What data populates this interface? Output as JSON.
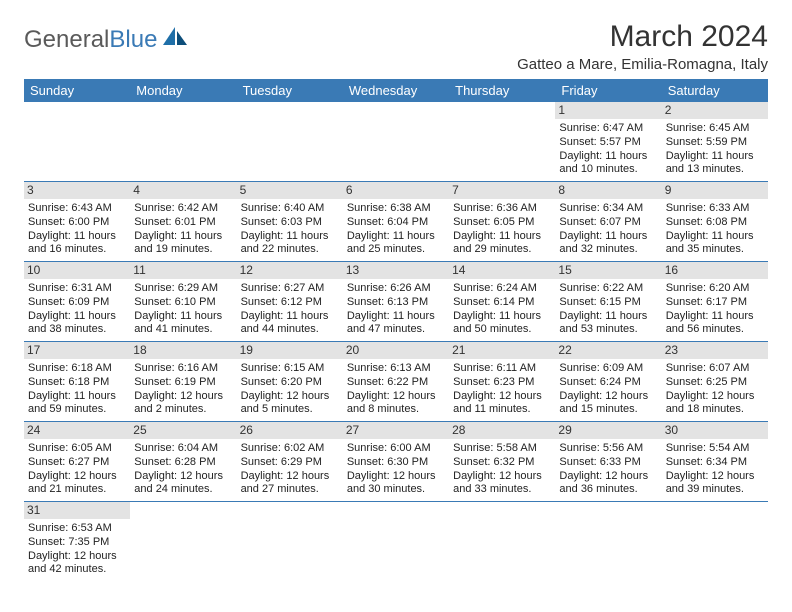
{
  "logo": {
    "general": "General",
    "blue": "Blue"
  },
  "title": "March 2024",
  "location": "Gatteo a Mare, Emilia-Romagna, Italy",
  "colors": {
    "headerBar": "#3a7ab5",
    "shadedDay": "#e3e3e3",
    "text": "#222222",
    "logoGrey": "#5a5a5a",
    "background": "#ffffff"
  },
  "dayNames": [
    "Sunday",
    "Monday",
    "Tuesday",
    "Wednesday",
    "Thursday",
    "Friday",
    "Saturday"
  ],
  "weeks": [
    [
      null,
      null,
      null,
      null,
      null,
      {
        "n": 1,
        "sr": "6:47 AM",
        "ss": "5:57 PM",
        "dl": "11 hours and 10 minutes."
      },
      {
        "n": 2,
        "sr": "6:45 AM",
        "ss": "5:59 PM",
        "dl": "11 hours and 13 minutes."
      }
    ],
    [
      {
        "n": 3,
        "sr": "6:43 AM",
        "ss": "6:00 PM",
        "dl": "11 hours and 16 minutes."
      },
      {
        "n": 4,
        "sr": "6:42 AM",
        "ss": "6:01 PM",
        "dl": "11 hours and 19 minutes."
      },
      {
        "n": 5,
        "sr": "6:40 AM",
        "ss": "6:03 PM",
        "dl": "11 hours and 22 minutes."
      },
      {
        "n": 6,
        "sr": "6:38 AM",
        "ss": "6:04 PM",
        "dl": "11 hours and 25 minutes."
      },
      {
        "n": 7,
        "sr": "6:36 AM",
        "ss": "6:05 PM",
        "dl": "11 hours and 29 minutes."
      },
      {
        "n": 8,
        "sr": "6:34 AM",
        "ss": "6:07 PM",
        "dl": "11 hours and 32 minutes."
      },
      {
        "n": 9,
        "sr": "6:33 AM",
        "ss": "6:08 PM",
        "dl": "11 hours and 35 minutes."
      }
    ],
    [
      {
        "n": 10,
        "sr": "6:31 AM",
        "ss": "6:09 PM",
        "dl": "11 hours and 38 minutes."
      },
      {
        "n": 11,
        "sr": "6:29 AM",
        "ss": "6:10 PM",
        "dl": "11 hours and 41 minutes."
      },
      {
        "n": 12,
        "sr": "6:27 AM",
        "ss": "6:12 PM",
        "dl": "11 hours and 44 minutes."
      },
      {
        "n": 13,
        "sr": "6:26 AM",
        "ss": "6:13 PM",
        "dl": "11 hours and 47 minutes."
      },
      {
        "n": 14,
        "sr": "6:24 AM",
        "ss": "6:14 PM",
        "dl": "11 hours and 50 minutes."
      },
      {
        "n": 15,
        "sr": "6:22 AM",
        "ss": "6:15 PM",
        "dl": "11 hours and 53 minutes."
      },
      {
        "n": 16,
        "sr": "6:20 AM",
        "ss": "6:17 PM",
        "dl": "11 hours and 56 minutes."
      }
    ],
    [
      {
        "n": 17,
        "sr": "6:18 AM",
        "ss": "6:18 PM",
        "dl": "11 hours and 59 minutes."
      },
      {
        "n": 18,
        "sr": "6:16 AM",
        "ss": "6:19 PM",
        "dl": "12 hours and 2 minutes."
      },
      {
        "n": 19,
        "sr": "6:15 AM",
        "ss": "6:20 PM",
        "dl": "12 hours and 5 minutes."
      },
      {
        "n": 20,
        "sr": "6:13 AM",
        "ss": "6:22 PM",
        "dl": "12 hours and 8 minutes."
      },
      {
        "n": 21,
        "sr": "6:11 AM",
        "ss": "6:23 PM",
        "dl": "12 hours and 11 minutes."
      },
      {
        "n": 22,
        "sr": "6:09 AM",
        "ss": "6:24 PM",
        "dl": "12 hours and 15 minutes."
      },
      {
        "n": 23,
        "sr": "6:07 AM",
        "ss": "6:25 PM",
        "dl": "12 hours and 18 minutes."
      }
    ],
    [
      {
        "n": 24,
        "sr": "6:05 AM",
        "ss": "6:27 PM",
        "dl": "12 hours and 21 minutes."
      },
      {
        "n": 25,
        "sr": "6:04 AM",
        "ss": "6:28 PM",
        "dl": "12 hours and 24 minutes."
      },
      {
        "n": 26,
        "sr": "6:02 AM",
        "ss": "6:29 PM",
        "dl": "12 hours and 27 minutes."
      },
      {
        "n": 27,
        "sr": "6:00 AM",
        "ss": "6:30 PM",
        "dl": "12 hours and 30 minutes."
      },
      {
        "n": 28,
        "sr": "5:58 AM",
        "ss": "6:32 PM",
        "dl": "12 hours and 33 minutes."
      },
      {
        "n": 29,
        "sr": "5:56 AM",
        "ss": "6:33 PM",
        "dl": "12 hours and 36 minutes."
      },
      {
        "n": 30,
        "sr": "5:54 AM",
        "ss": "6:34 PM",
        "dl": "12 hours and 39 minutes."
      }
    ],
    [
      {
        "n": 31,
        "sr": "6:53 AM",
        "ss": "7:35 PM",
        "dl": "12 hours and 42 minutes."
      },
      null,
      null,
      null,
      null,
      null,
      null
    ]
  ],
  "labels": {
    "sunrise": "Sunrise:",
    "sunset": "Sunset:",
    "daylight": "Daylight:"
  }
}
